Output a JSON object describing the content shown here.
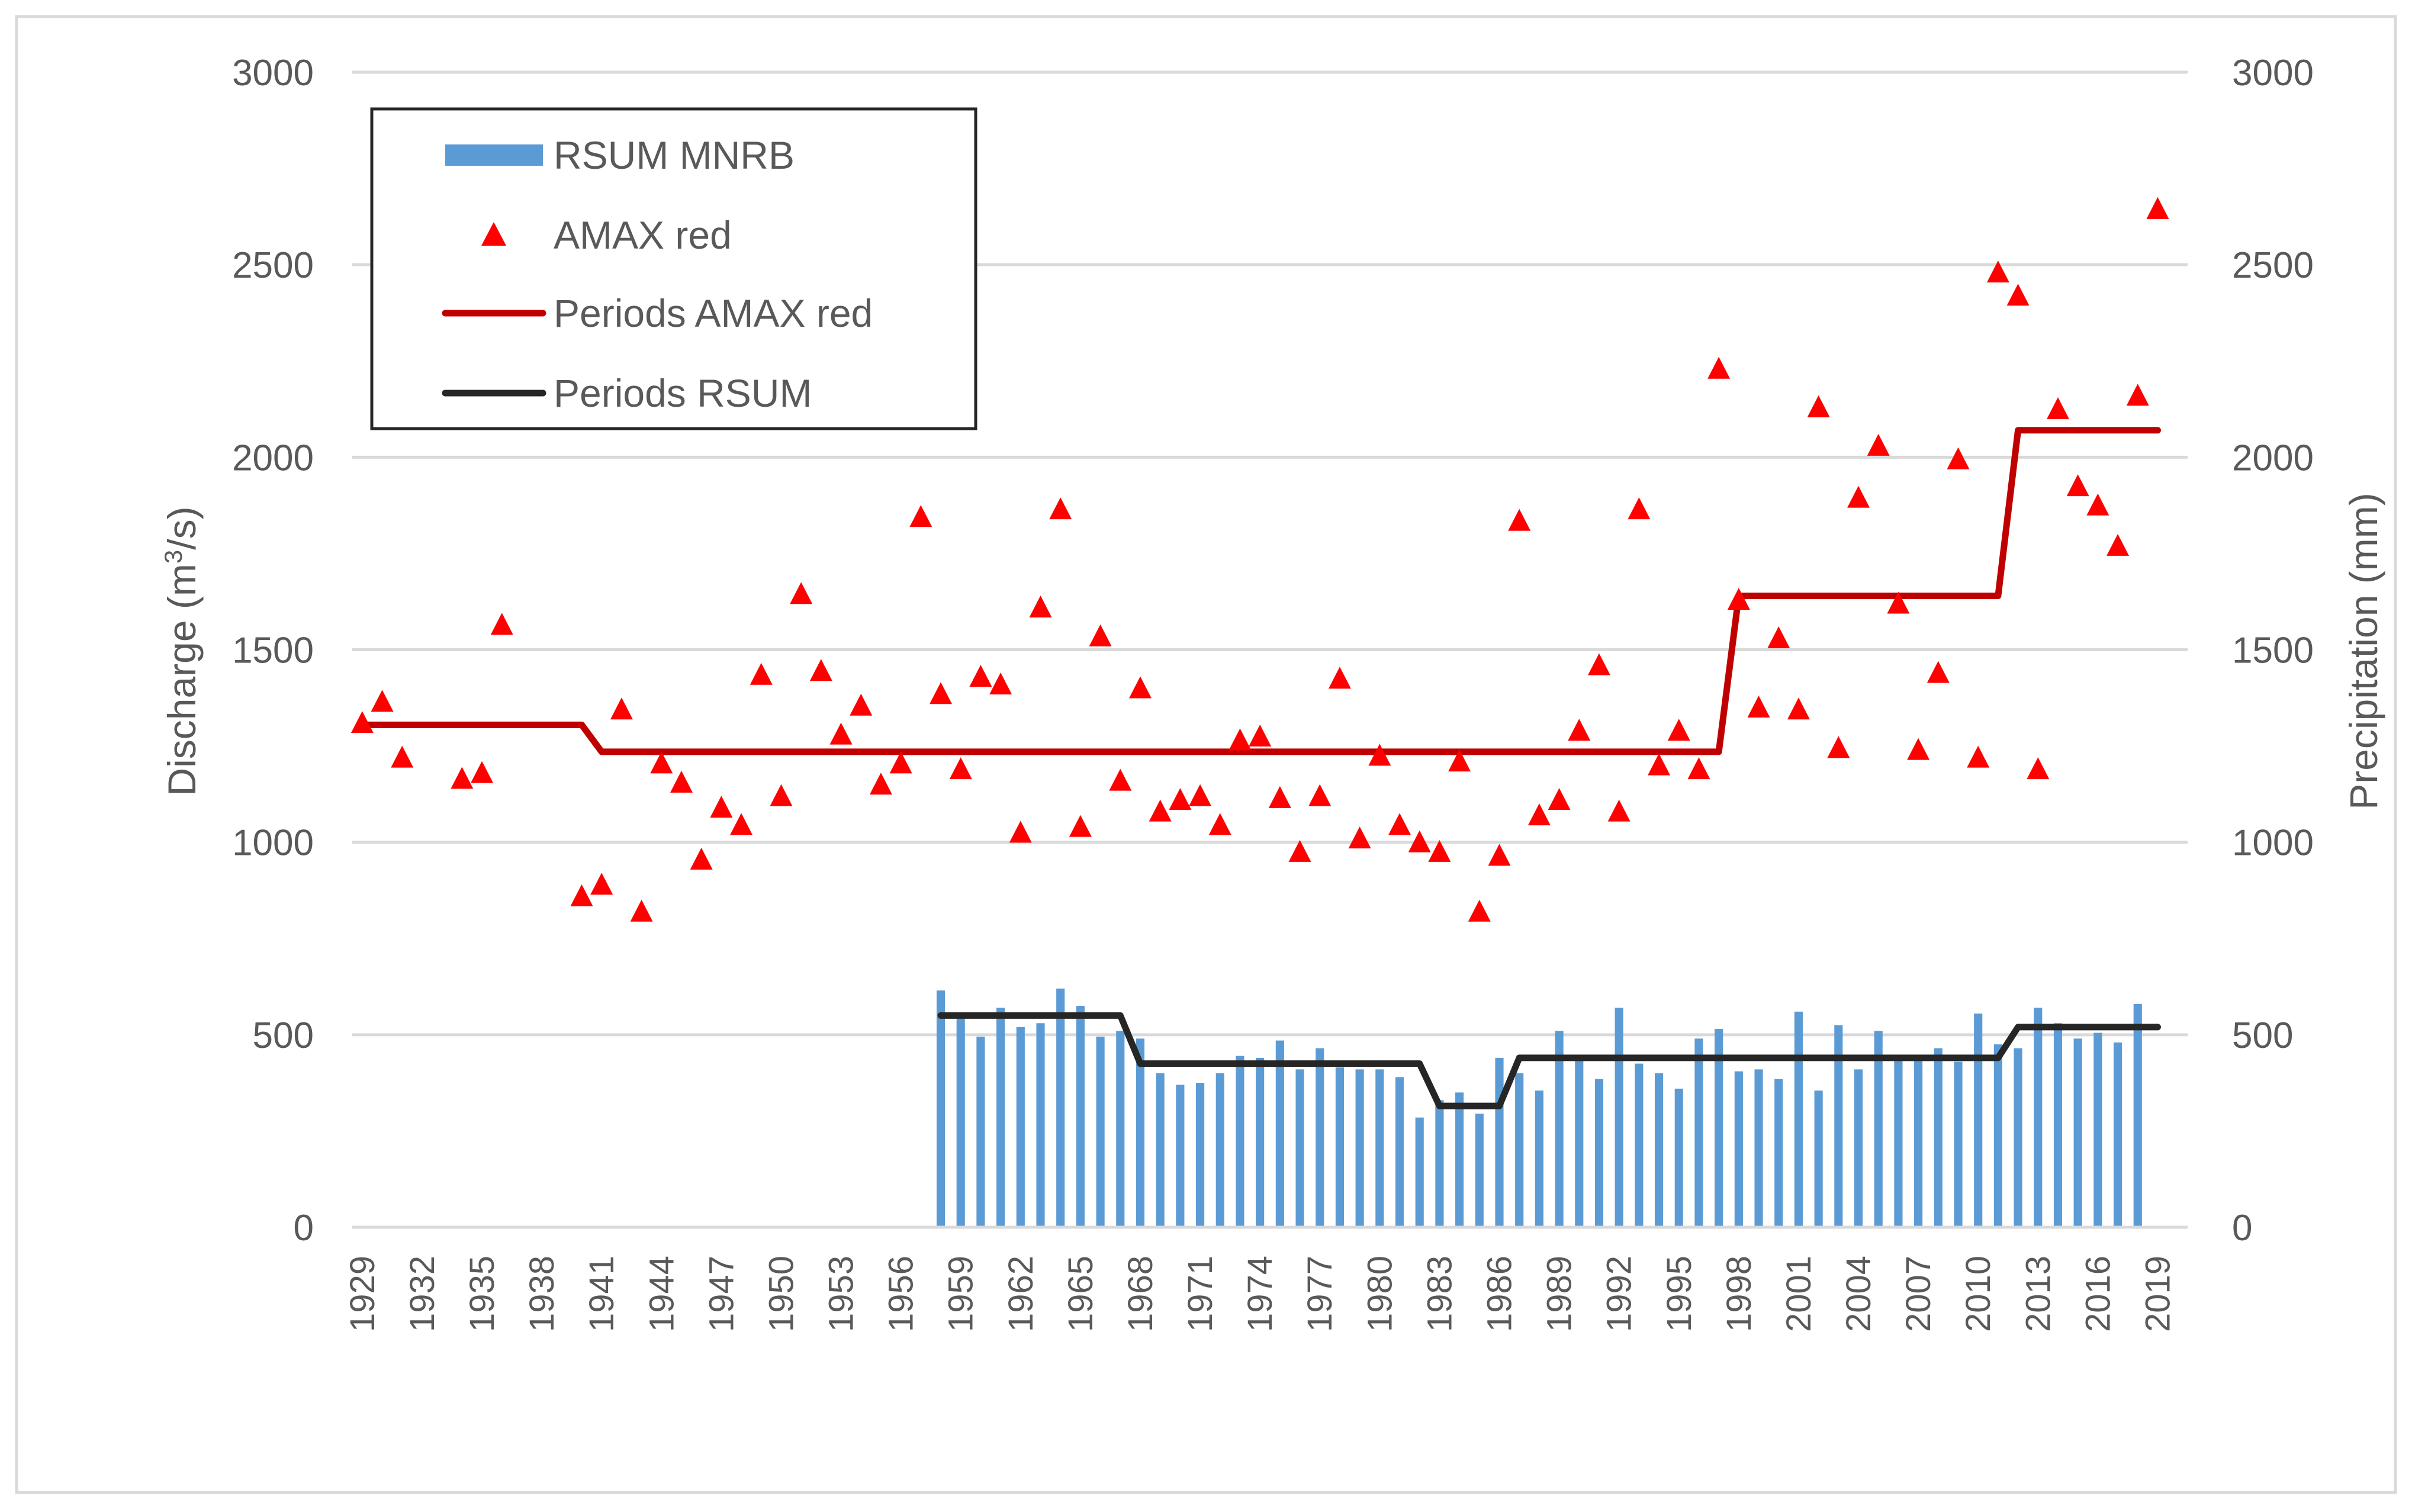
{
  "chart_data": {
    "type": "bar",
    "x_start_year": 1929,
    "x_end_year": 2020,
    "x_tick_labels": [
      "1929",
      "1932",
      "1935",
      "1938",
      "1941",
      "1944",
      "1947",
      "1950",
      "1953",
      "1956",
      "1959",
      "1962",
      "1965",
      "1968",
      "1971",
      "1974",
      "1977",
      "1980",
      "1983",
      "1986",
      "1989",
      "1992",
      "1995",
      "1998",
      "2001",
      "2004",
      "2007",
      "2010",
      "2013",
      "2016",
      "2019"
    ],
    "y_left": {
      "label_main": "Discharge (m",
      "label_sup": "3",
      "label_end": "/s)",
      "range": [
        0,
        3000
      ],
      "ticks": [
        "0",
        "500",
        "1000",
        "1500",
        "2000",
        "2500",
        "3000"
      ]
    },
    "y_right": {
      "label": "Precipitation (mm)",
      "range": [
        0,
        3000
      ],
      "ticks": [
        "0",
        "500",
        "1000",
        "1500",
        "2000",
        "2500",
        "3000"
      ]
    },
    "gridlines": true,
    "legend": {
      "position": "top-left",
      "entries": [
        {
          "label": "RSUM MNRB",
          "kind": "bar",
          "color": "#5B9BD5"
        },
        {
          "label": "AMAX red",
          "kind": "marker",
          "color": "#FF0000"
        },
        {
          "label": "Periods AMAX red",
          "kind": "line",
          "color": "#C00000"
        },
        {
          "label": "Periods RSUM",
          "kind": "line",
          "color": "#262626"
        }
      ]
    },
    "series": [
      {
        "name": "RSUM MNRB",
        "type": "bar",
        "axis": "right",
        "color": "#5B9BD5",
        "points": [
          [
            1958,
            615
          ],
          [
            1959,
            550
          ],
          [
            1960,
            495
          ],
          [
            1961,
            570
          ],
          [
            1962,
            520
          ],
          [
            1963,
            530
          ],
          [
            1964,
            620
          ],
          [
            1965,
            575
          ],
          [
            1966,
            495
          ],
          [
            1967,
            510
          ],
          [
            1968,
            490
          ],
          [
            1969,
            400
          ],
          [
            1970,
            370
          ],
          [
            1971,
            375
          ],
          [
            1972,
            400
          ],
          [
            1973,
            445
          ],
          [
            1974,
            440
          ],
          [
            1975,
            485
          ],
          [
            1976,
            410
          ],
          [
            1977,
            465
          ],
          [
            1978,
            415
          ],
          [
            1979,
            410
          ],
          [
            1980,
            410
          ],
          [
            1981,
            390
          ],
          [
            1982,
            285
          ],
          [
            1983,
            330
          ],
          [
            1984,
            350
          ],
          [
            1985,
            295
          ],
          [
            1986,
            440
          ],
          [
            1987,
            400
          ],
          [
            1988,
            355
          ],
          [
            1989,
            510
          ],
          [
            1990,
            440
          ],
          [
            1991,
            385
          ],
          [
            1992,
            570
          ],
          [
            1993,
            425
          ],
          [
            1994,
            400
          ],
          [
            1995,
            360
          ],
          [
            1996,
            490
          ],
          [
            1997,
            515
          ],
          [
            1998,
            405
          ],
          [
            1999,
            410
          ],
          [
            2000,
            385
          ],
          [
            2001,
            560
          ],
          [
            2002,
            355
          ],
          [
            2003,
            525
          ],
          [
            2004,
            410
          ],
          [
            2005,
            510
          ],
          [
            2006,
            445
          ],
          [
            2007,
            435
          ],
          [
            2008,
            465
          ],
          [
            2009,
            430
          ],
          [
            2010,
            555
          ],
          [
            2011,
            475
          ],
          [
            2012,
            465
          ],
          [
            2013,
            570
          ],
          [
            2014,
            530
          ],
          [
            2015,
            490
          ],
          [
            2016,
            505
          ],
          [
            2017,
            480
          ],
          [
            2018,
            580
          ]
        ]
      },
      {
        "name": "AMAX red",
        "type": "scatter",
        "axis": "left",
        "color": "#FF0000",
        "points": [
          [
            1929,
            1310
          ],
          [
            1930,
            1365
          ],
          [
            1931,
            1220
          ],
          [
            1934,
            1165
          ],
          [
            1935,
            1180
          ],
          [
            1936,
            1565
          ],
          [
            1940,
            860
          ],
          [
            1941,
            890
          ],
          [
            1942,
            1345
          ],
          [
            1943,
            820
          ],
          [
            1944,
            1205
          ],
          [
            1945,
            1155
          ],
          [
            1946,
            955
          ],
          [
            1947,
            1090
          ],
          [
            1948,
            1045
          ],
          [
            1949,
            1435
          ],
          [
            1950,
            1120
          ],
          [
            1951,
            1645
          ],
          [
            1952,
            1445
          ],
          [
            1953,
            1280
          ],
          [
            1954,
            1355
          ],
          [
            1955,
            1150
          ],
          [
            1956,
            1205
          ],
          [
            1957,
            1845
          ],
          [
            1958,
            1385
          ],
          [
            1959,
            1190
          ],
          [
            1960,
            1430
          ],
          [
            1961,
            1410
          ],
          [
            1962,
            1025
          ],
          [
            1963,
            1610
          ],
          [
            1964,
            1865
          ],
          [
            1965,
            1040
          ],
          [
            1966,
            1535
          ],
          [
            1967,
            1160
          ],
          [
            1968,
            1400
          ],
          [
            1969,
            1080
          ],
          [
            1970,
            1110
          ],
          [
            1971,
            1120
          ],
          [
            1972,
            1045
          ],
          [
            1973,
            1265
          ],
          [
            1974,
            1275
          ],
          [
            1975,
            1115
          ],
          [
            1976,
            975
          ],
          [
            1977,
            1120
          ],
          [
            1978,
            1425
          ],
          [
            1979,
            1010
          ],
          [
            1980,
            1225
          ],
          [
            1981,
            1045
          ],
          [
            1982,
            1000
          ],
          [
            1983,
            975
          ],
          [
            1984,
            1210
          ],
          [
            1985,
            820
          ],
          [
            1986,
            965
          ],
          [
            1987,
            1835
          ],
          [
            1988,
            1070
          ],
          [
            1989,
            1110
          ],
          [
            1990,
            1290
          ],
          [
            1991,
            1460
          ],
          [
            1992,
            1080
          ],
          [
            1993,
            1865
          ],
          [
            1994,
            1200
          ],
          [
            1995,
            1290
          ],
          [
            1996,
            1190
          ],
          [
            1997,
            2230
          ],
          [
            1998,
            1630
          ],
          [
            1999,
            1350
          ],
          [
            2000,
            1530
          ],
          [
            2001,
            1345
          ],
          [
            2002,
            2130
          ],
          [
            2003,
            1245
          ],
          [
            2004,
            1895
          ],
          [
            2005,
            2030
          ],
          [
            2006,
            1620
          ],
          [
            2007,
            1240
          ],
          [
            2008,
            1440
          ],
          [
            2009,
            1995
          ],
          [
            2010,
            1220
          ],
          [
            2011,
            2480
          ],
          [
            2012,
            2420
          ],
          [
            2013,
            1190
          ],
          [
            2014,
            2125
          ],
          [
            2015,
            1925
          ],
          [
            2016,
            1875
          ],
          [
            2017,
            1770
          ],
          [
            2018,
            2160
          ],
          [
            2019,
            2645
          ]
        ]
      },
      {
        "name": "Periods AMAX red",
        "type": "step-line",
        "axis": "left",
        "color": "#C00000",
        "points": [
          [
            1929,
            1305
          ],
          [
            1940,
            1305
          ],
          [
            1941,
            1235
          ],
          [
            1997,
            1235
          ],
          [
            1998,
            1640
          ],
          [
            2011,
            1640
          ],
          [
            2012,
            2070
          ],
          [
            2019,
            2070
          ]
        ]
      },
      {
        "name": "Periods RSUM",
        "type": "step-line",
        "axis": "left",
        "color": "#262626",
        "points": [
          [
            1958,
            550
          ],
          [
            1967,
            550
          ],
          [
            1968,
            425
          ],
          [
            1982,
            425
          ],
          [
            1983,
            315
          ],
          [
            1986,
            315
          ],
          [
            1987,
            440
          ],
          [
            2011,
            440
          ],
          [
            2012,
            520
          ],
          [
            2019,
            520
          ]
        ]
      }
    ]
  }
}
